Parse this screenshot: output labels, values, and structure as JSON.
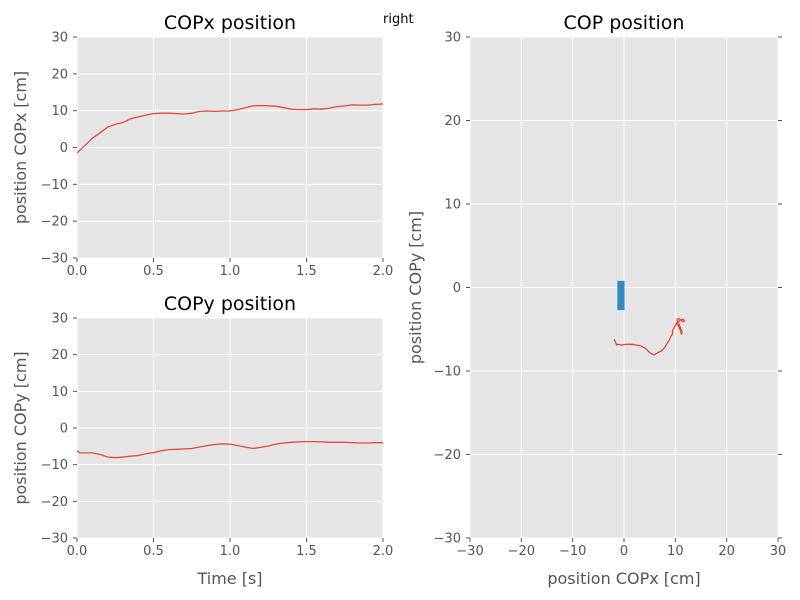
{
  "chart_data": [
    {
      "id": "copx",
      "type": "line",
      "title": "COPx position",
      "xlabel": "",
      "ylabel": "position COPx [cm]",
      "xlim": [
        0,
        2
      ],
      "ylim": [
        -30,
        30
      ],
      "xticks": [
        0,
        0.5,
        1,
        1.5,
        2
      ],
      "xtick_labels": [
        "0.0",
        "0.5",
        "1.0",
        "1.5",
        "2.0"
      ],
      "yticks": [
        -30,
        -20,
        -10,
        0,
        10,
        20,
        30
      ],
      "ytick_labels": [
        "−30",
        "−20",
        "−10",
        "0",
        "10",
        "20",
        "30"
      ],
      "grid": true,
      "series": [
        {
          "color": "#e24a33",
          "x": [
            0,
            0.05,
            0.1,
            0.15,
            0.2,
            0.25,
            0.3,
            0.35,
            0.4,
            0.45,
            0.5,
            0.55,
            0.6,
            0.65,
            0.7,
            0.75,
            0.8,
            0.85,
            0.9,
            0.95,
            1.0,
            1.05,
            1.1,
            1.15,
            1.2,
            1.25,
            1.3,
            1.35,
            1.4,
            1.45,
            1.5,
            1.55,
            1.6,
            1.65,
            1.7,
            1.75,
            1.8,
            1.85,
            1.9,
            1.95,
            2.0
          ],
          "y": [
            -1.5,
            0.5,
            2.5,
            4.0,
            5.5,
            6.3,
            6.8,
            7.8,
            8.3,
            8.8,
            9.2,
            9.3,
            9.3,
            9.2,
            9.1,
            9.3,
            9.8,
            9.9,
            9.8,
            9.9,
            9.9,
            10.3,
            10.8,
            11.3,
            11.4,
            11.3,
            11.2,
            10.8,
            10.4,
            10.3,
            10.3,
            10.5,
            10.4,
            10.7,
            11.1,
            11.3,
            11.6,
            11.5,
            11.5,
            11.7,
            11.8
          ]
        }
      ]
    },
    {
      "id": "copy",
      "type": "line",
      "title": "COPy position",
      "xlabel": "Time [s]",
      "ylabel": "position COPy [cm]",
      "xlim": [
        0,
        2
      ],
      "ylim": [
        -30,
        30
      ],
      "xticks": [
        0,
        0.5,
        1,
        1.5,
        2
      ],
      "xtick_labels": [
        "0.0",
        "0.5",
        "1.0",
        "1.5",
        "2.0"
      ],
      "yticks": [
        -30,
        -20,
        -10,
        0,
        10,
        20,
        30
      ],
      "ytick_labels": [
        "−30",
        "−20",
        "−10",
        "0",
        "10",
        "20",
        "30"
      ],
      "grid": true,
      "series": [
        {
          "color": "#e24a33",
          "x": [
            0,
            0.02,
            0.05,
            0.1,
            0.15,
            0.2,
            0.25,
            0.3,
            0.35,
            0.4,
            0.45,
            0.5,
            0.55,
            0.6,
            0.65,
            0.7,
            0.75,
            0.8,
            0.85,
            0.9,
            0.95,
            1.0,
            1.05,
            1.1,
            1.15,
            1.2,
            1.25,
            1.3,
            1.35,
            1.4,
            1.45,
            1.5,
            1.55,
            1.6,
            1.65,
            1.7,
            1.75,
            1.8,
            1.85,
            1.9,
            1.95,
            2.0
          ],
          "y": [
            -6.2,
            -6.8,
            -6.8,
            -6.8,
            -7.2,
            -7.9,
            -8.1,
            -7.9,
            -7.7,
            -7.5,
            -7.0,
            -6.7,
            -6.2,
            -5.9,
            -5.8,
            -5.7,
            -5.6,
            -5.2,
            -4.8,
            -4.5,
            -4.3,
            -4.4,
            -4.8,
            -5.2,
            -5.6,
            -5.3,
            -4.9,
            -4.4,
            -4.1,
            -3.9,
            -3.8,
            -3.7,
            -3.7,
            -3.8,
            -3.9,
            -3.9,
            -3.9,
            -4.0,
            -4.1,
            -4.1,
            -4.0,
            -4.0
          ]
        }
      ]
    },
    {
      "id": "cop",
      "type": "line",
      "title": "COP position",
      "xlabel": "position COPx [cm]",
      "ylabel": "position COPy [cm]",
      "xlim": [
        -30,
        30
      ],
      "ylim": [
        -30,
        30
      ],
      "xticks": [
        -30,
        -20,
        -10,
        0,
        10,
        20,
        30
      ],
      "xtick_labels": [
        "−30",
        "−20",
        "−10",
        "0",
        "10",
        "20",
        "30"
      ],
      "yticks": [
        -30,
        -20,
        -10,
        0,
        10,
        20,
        30
      ],
      "ytick_labels": [
        "−30",
        "−20",
        "−10",
        "0",
        "10",
        "20",
        "30"
      ],
      "grid": true,
      "rect": {
        "x0": -1.3,
        "x1": 0.1,
        "y0": -2.7,
        "y1": 0.8,
        "color": "#348abd"
      },
      "series": [
        {
          "color": "#e24a33",
          "x": [
            -1.9,
            -1.4,
            -1.2,
            -0.5,
            0.3,
            1.5,
            2.5,
            3.3,
            4.2,
            5.0,
            5.8,
            6.3,
            6.9,
            7.3,
            7.9,
            8.7,
            9.2,
            9.5,
            9.4,
            9.8,
            10.1,
            10.3,
            10.6,
            11.0,
            11.2,
            11.3,
            11.0,
            10.6,
            10.3,
            10.6,
            11.2,
            11.4,
            11.8,
            11.5,
            11.0,
            10.6
          ],
          "y": [
            -6.2,
            -6.9,
            -6.8,
            -6.9,
            -6.8,
            -6.8,
            -6.9,
            -7.0,
            -7.3,
            -7.8,
            -8.1,
            -7.9,
            -7.7,
            -7.6,
            -7.2,
            -6.4,
            -5.8,
            -5.5,
            -5.2,
            -4.8,
            -4.4,
            -4.2,
            -4.6,
            -5.2,
            -5.6,
            -5.4,
            -4.8,
            -4.3,
            -3.9,
            -3.7,
            -3.9,
            -4.1,
            -4.0,
            -3.8,
            -3.9,
            -4.1
          ]
        }
      ]
    }
  ],
  "annotations": {
    "right_label": "right"
  }
}
